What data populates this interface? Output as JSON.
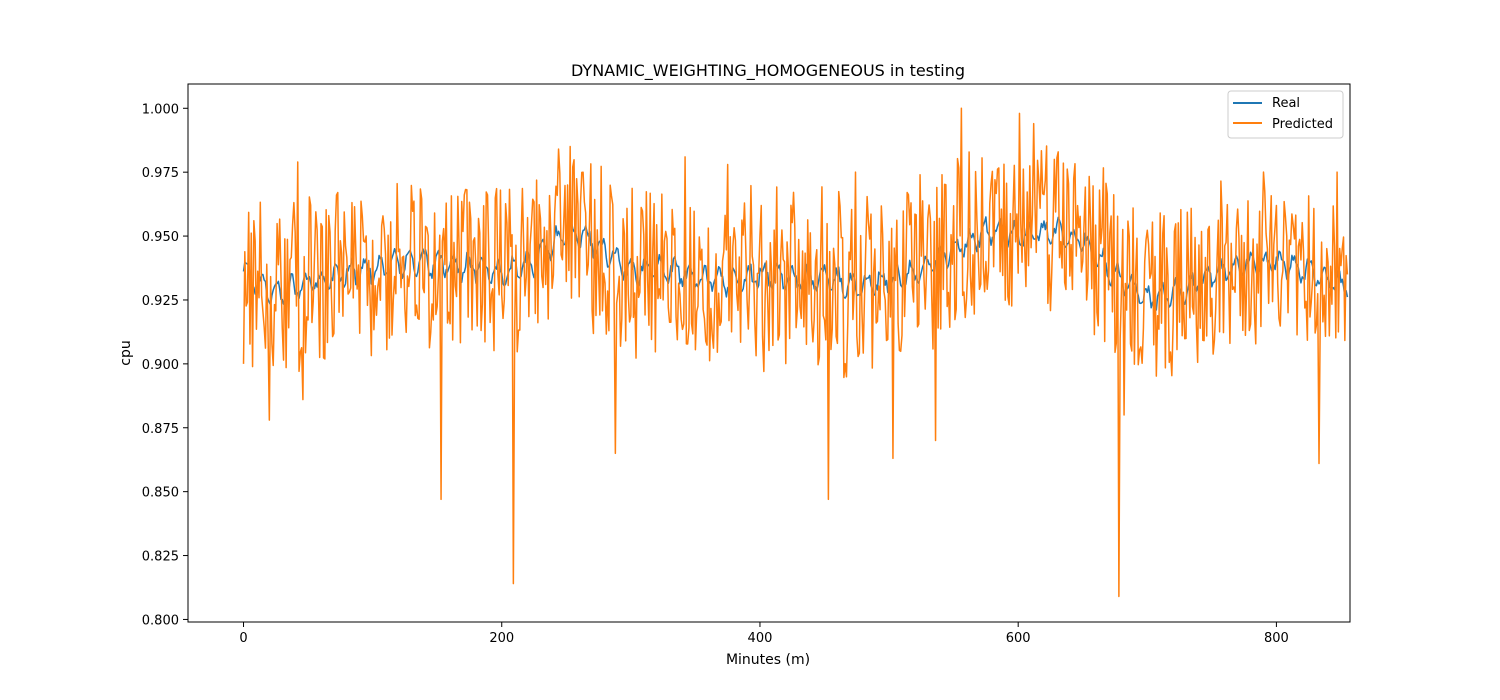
{
  "chart_data": {
    "type": "line",
    "title": "DYNAMIC_WEIGHTING_HOMOGENEOUS in testing",
    "xlabel": "Minutes (m)",
    "ylabel": "cpu",
    "xlim": [
      -43,
      857
    ],
    "ylim": [
      0.799,
      1.0095
    ],
    "x_ticks": [
      0,
      200,
      400,
      600,
      800
    ],
    "y_ticks": [
      0.8,
      0.825,
      0.85,
      0.875,
      0.9,
      0.925,
      0.95,
      0.975,
      1.0
    ],
    "x_tick_labels": [
      "0",
      "200",
      "400",
      "600",
      "800"
    ],
    "y_tick_labels": [
      "0.800",
      "0.825",
      "0.850",
      "0.875",
      "0.900",
      "0.925",
      "0.950",
      "0.975",
      "1.000"
    ],
    "grid": false,
    "legend_position": "top-right",
    "x_range": [
      0,
      855
    ],
    "series": [
      {
        "name": "Real",
        "color": "#1f77b4",
        "x": [
          0,
          25,
          50,
          75,
          100,
          125,
          150,
          175,
          200,
          225,
          250,
          275,
          300,
          325,
          350,
          375,
          400,
          425,
          450,
          475,
          500,
          525,
          550,
          575,
          600,
          625,
          650,
          675,
          700,
          725,
          750,
          775,
          800,
          825,
          855
        ],
        "values": [
          0.936,
          0.927,
          0.931,
          0.935,
          0.937,
          0.94,
          0.939,
          0.938,
          0.935,
          0.94,
          0.952,
          0.947,
          0.936,
          0.938,
          0.934,
          0.932,
          0.935,
          0.933,
          0.934,
          0.93,
          0.933,
          0.936,
          0.945,
          0.952,
          0.95,
          0.952,
          0.948,
          0.935,
          0.925,
          0.928,
          0.935,
          0.938,
          0.94,
          0.936,
          0.93
        ]
      },
      {
        "name": "Predicted",
        "color": "#ff7f0e",
        "x": [
          0,
          8,
          20,
          42,
          46,
          153,
          209,
          244,
          288,
          342,
          375,
          403,
          453,
          474,
          503,
          524,
          536,
          556,
          601,
          612,
          678,
          682,
          691,
          763,
          790,
          833,
          847,
          855
        ],
        "values": [
          0.9,
          0.956,
          0.878,
          0.979,
          0.886,
          0.847,
          0.814,
          0.984,
          0.865,
          0.981,
          0.978,
          0.897,
          0.847,
          0.975,
          0.863,
          0.974,
          0.87,
          1.0,
          0.998,
          0.994,
          0.809,
          0.88,
          0.936,
          0.933,
          0.975,
          0.861,
          0.975,
          0.935
        ]
      }
    ]
  }
}
